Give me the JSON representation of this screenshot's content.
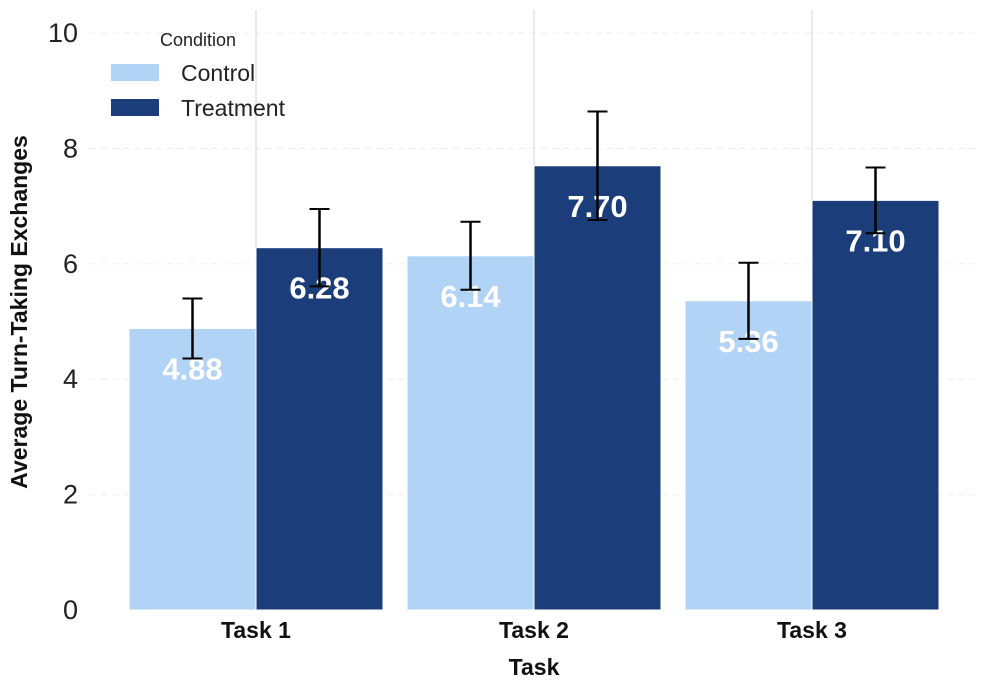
{
  "chart_data": {
    "type": "bar",
    "title": "",
    "xlabel": "Task",
    "ylabel": "Average Turn-Taking Exchanges",
    "categories": [
      "Task 1",
      "Task 2",
      "Task 3"
    ],
    "series": [
      {
        "name": "Control",
        "color": "#b1d3f6",
        "values": [
          4.88,
          6.14,
          5.36
        ],
        "errors": [
          0.52,
          0.59,
          0.66
        ],
        "labels": [
          "4.88",
          "6.14",
          "5.36"
        ]
      },
      {
        "name": "Treatment",
        "color": "#1b3e7b",
        "values": [
          6.28,
          7.7,
          7.1
        ],
        "errors": [
          0.67,
          0.94,
          0.57
        ],
        "labels": [
          "6.28",
          "7.70",
          "7.10"
        ]
      }
    ],
    "ylim": [
      0,
      10.4
    ],
    "yticks": [
      0,
      2,
      4,
      6,
      8,
      10
    ],
    "ytick_labels": [
      "0",
      "2",
      "4",
      "6",
      "8",
      "10"
    ],
    "grid": true,
    "legend": {
      "title": "Condition",
      "placement": "top-left"
    }
  }
}
